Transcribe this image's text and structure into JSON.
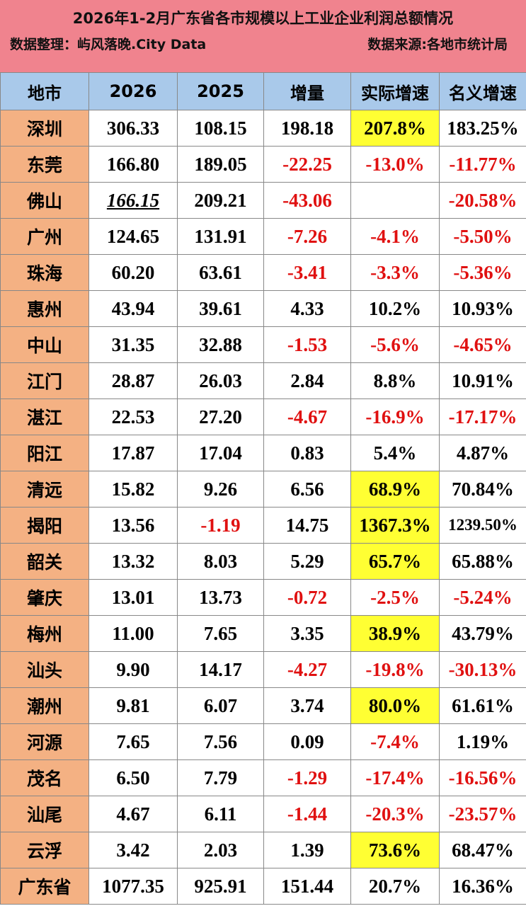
{
  "header": {
    "title": "2026年1-2月广东省各市规模以上工业企业利润总额情况",
    "organizer": "数据整理：屿风落晚.City Data",
    "source": "数据来源:各地市统计局"
  },
  "table": {
    "columns": [
      "地市",
      "2026",
      "2025",
      "增量",
      "实际增速",
      "名义增速"
    ],
    "rows": [
      [
        "深圳",
        "306.33",
        "108.15",
        "198.18",
        "207.8%",
        "183.25%"
      ],
      [
        "东莞",
        "166.80",
        "189.05",
        "-22.25",
        "-13.0%",
        "-11.77%"
      ],
      [
        "佛山",
        "166.15",
        "209.21",
        "-43.06",
        null,
        "-20.58%"
      ],
      [
        "广州",
        "124.65",
        "131.91",
        "-7.26",
        "-4.1%",
        "-5.50%"
      ],
      [
        "珠海",
        "60.20",
        "63.61",
        "-3.41",
        "-3.3%",
        "-5.36%"
      ],
      [
        "惠州",
        "43.94",
        "39.61",
        "4.33",
        "10.2%",
        "10.93%"
      ],
      [
        "中山",
        "31.35",
        "32.88",
        "-1.53",
        "-5.6%",
        "-4.65%"
      ],
      [
        "江门",
        "28.87",
        "26.03",
        "2.84",
        "8.8%",
        "10.91%"
      ],
      [
        "湛江",
        "22.53",
        "27.20",
        "-4.67",
        "-16.9%",
        "-17.17%"
      ],
      [
        "阳江",
        "17.87",
        "17.04",
        "0.83",
        "5.4%",
        "4.87%"
      ],
      [
        "清远",
        "15.82",
        "9.26",
        "6.56",
        "68.9%",
        "70.84%"
      ],
      [
        "揭阳",
        "13.56",
        "-1.19",
        "14.75",
        "1367.3%",
        "1239.50%"
      ],
      [
        "韶关",
        "13.32",
        "8.03",
        "5.29",
        "65.7%",
        "65.88%"
      ],
      [
        "肇庆",
        "13.01",
        "13.73",
        "-0.72",
        "-2.5%",
        "-5.24%"
      ],
      [
        "梅州",
        "11.00",
        "7.65",
        "3.35",
        "38.9%",
        "43.79%"
      ],
      [
        "汕头",
        "9.90",
        "14.17",
        "-4.27",
        "-19.8%",
        "-30.13%"
      ],
      [
        "潮州",
        "9.81",
        "6.07",
        "3.74",
        "80.0%",
        "61.61%"
      ],
      [
        "河源",
        "7.65",
        "7.56",
        "0.09",
        "-7.4%",
        "1.19%"
      ],
      [
        "茂名",
        "6.50",
        "7.79",
        "-1.29",
        "-17.4%",
        "-16.56%"
      ],
      [
        "汕尾",
        "4.67",
        "6.11",
        "-1.44",
        "-20.3%",
        "-23.57%"
      ],
      [
        "云浮",
        "3.42",
        "2.03",
        "1.39",
        "73.6%",
        "68.47%"
      ],
      [
        "广东省",
        "1077.35",
        "925.91",
        "151.44",
        "20.7%",
        "16.36%"
      ]
    ]
  }
}
